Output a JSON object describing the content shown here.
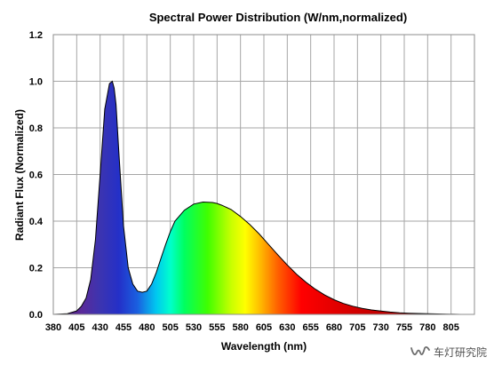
{
  "chart_data": {
    "type": "area",
    "title": "Spectral Power Distribution (W/nm,normalized)",
    "xlabel": "Wavelength (nm)",
    "ylabel": "Radiant Flux (Normalized)",
    "xlim": [
      380,
      830
    ],
    "ylim": [
      0,
      1.2
    ],
    "x_ticks": [
      380,
      405,
      430,
      455,
      480,
      505,
      530,
      555,
      580,
      605,
      630,
      655,
      680,
      705,
      730,
      755,
      780,
      805
    ],
    "y_ticks": [
      "0.0",
      "0.2",
      "0.4",
      "0.6",
      "0.8",
      "1.0",
      "1.2"
    ],
    "grid": true,
    "fill": "visible-spectrum-gradient",
    "series": [
      {
        "x": [
          380,
          395,
          405,
          410,
          415,
          420,
          425,
          430,
          435,
          440,
          443,
          445,
          447,
          450,
          455,
          460,
          465,
          470,
          475,
          480,
          485,
          490,
          495,
          500,
          505,
          510,
          520,
          530,
          540,
          550,
          555,
          560,
          570,
          580,
          590,
          600,
          610,
          620,
          630,
          640,
          650,
          660,
          670,
          680,
          690,
          700,
          710,
          720,
          730,
          740,
          750,
          760,
          780,
          800,
          815
        ],
        "y": [
          0.0,
          0.003,
          0.015,
          0.035,
          0.07,
          0.15,
          0.32,
          0.6,
          0.88,
          0.99,
          1.0,
          0.97,
          0.9,
          0.7,
          0.38,
          0.2,
          0.13,
          0.1,
          0.095,
          0.1,
          0.13,
          0.18,
          0.24,
          0.3,
          0.355,
          0.4,
          0.447,
          0.473,
          0.482,
          0.48,
          0.476,
          0.468,
          0.45,
          0.42,
          0.385,
          0.345,
          0.3,
          0.255,
          0.212,
          0.172,
          0.138,
          0.108,
          0.083,
          0.063,
          0.047,
          0.035,
          0.026,
          0.019,
          0.014,
          0.01,
          0.007,
          0.005,
          0.0025,
          0.001,
          0.0
        ]
      }
    ]
  },
  "watermark": {
    "text": "车灯研究院",
    "icon": "wechat-channel-icon"
  }
}
